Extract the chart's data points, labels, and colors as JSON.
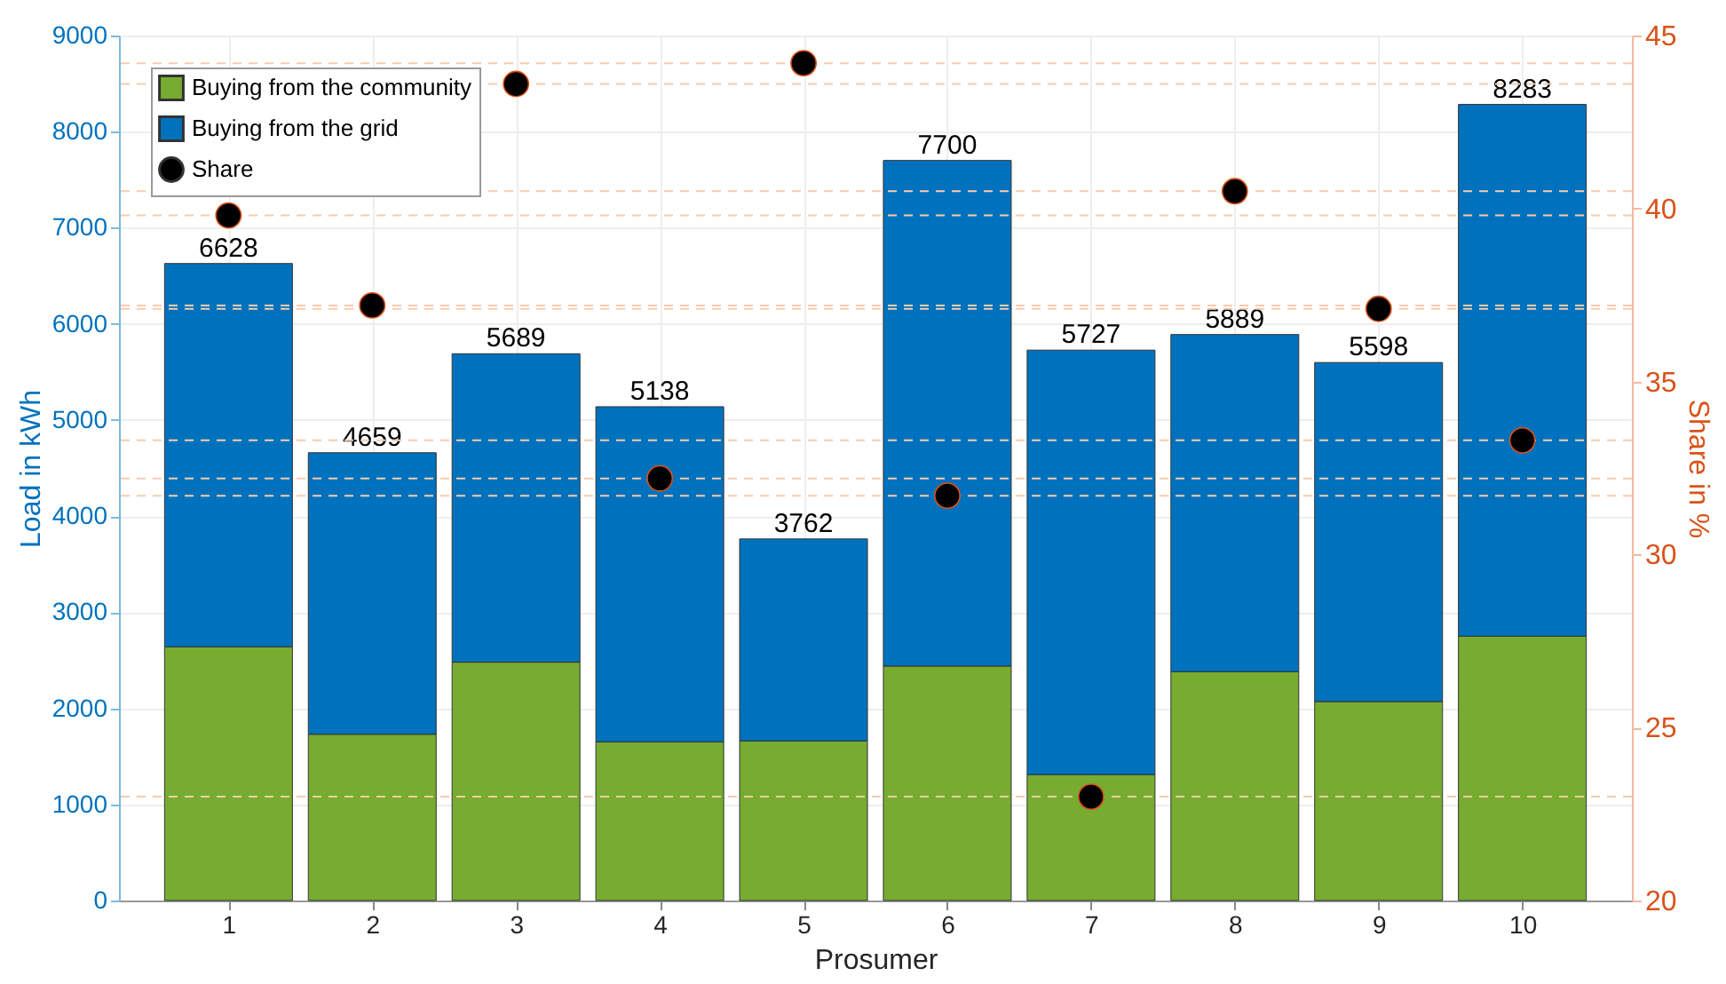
{
  "chart_data": {
    "type": "bar",
    "stacked": true,
    "xlabel": "Prosumer",
    "ylabel": "Load in kWh",
    "y2label": "Share in %",
    "categories": [
      "1",
      "2",
      "3",
      "4",
      "5",
      "6",
      "7",
      "8",
      "9",
      "10"
    ],
    "series": [
      {
        "name": "Buying from the community",
        "color": "#77ac30",
        "values": [
          2640,
          1730,
          2480,
          1650,
          1660,
          2440,
          1310,
          2380,
          2070,
          2750
        ]
      },
      {
        "name": "Buying from the grid",
        "color": "#0072bd",
        "values": [
          3988,
          2929,
          3209,
          3488,
          2102,
          5260,
          4417,
          3509,
          3528,
          5533
        ]
      },
      {
        "name": "Share",
        "type": "scatter",
        "axis": "y2",
        "color": "#000000",
        "marker": "circle",
        "values": [
          39.8,
          37.2,
          43.6,
          32.2,
          44.2,
          31.7,
          23.0,
          40.5,
          37.1,
          33.3
        ]
      }
    ],
    "totals": [
      "6628",
      "4659",
      "5689",
      "5138",
      "3762",
      "7700",
      "5727",
      "5889",
      "5598",
      "8283"
    ],
    "ylim": [
      0,
      9000
    ],
    "yticks": [
      0,
      1000,
      2000,
      3000,
      4000,
      5000,
      6000,
      7000,
      8000,
      9000
    ],
    "y2lim": [
      20,
      45
    ],
    "y2ticks": [
      20,
      25,
      30,
      35,
      40,
      45
    ],
    "ref_lines": [
      {
        "axis": "y2",
        "value": 39.8,
        "color": "#f8cbad",
        "line_style": "dashed"
      },
      {
        "axis": "y2",
        "value": 37.2,
        "color": "#f8cbad",
        "line_style": "dashed"
      },
      {
        "axis": "y2",
        "value": 43.6,
        "color": "#f8cbad",
        "line_style": "dashed"
      },
      {
        "axis": "y2",
        "value": 32.2,
        "color": "#f8cbad",
        "line_style": "dashed"
      },
      {
        "axis": "y2",
        "value": 44.2,
        "color": "#f8cbad",
        "line_style": "dashed"
      },
      {
        "axis": "y2",
        "value": 31.7,
        "color": "#f8cbad",
        "line_style": "dashed"
      },
      {
        "axis": "y2",
        "value": 23.0,
        "color": "#f8cbad",
        "line_style": "dashed"
      },
      {
        "axis": "y2",
        "value": 40.5,
        "color": "#f8cbad",
        "line_style": "dashed"
      },
      {
        "axis": "y2",
        "value": 37.1,
        "color": "#f8cbad",
        "line_style": "dashed"
      },
      {
        "axis": "y2",
        "value": 33.3,
        "color": "#f8cbad",
        "line_style": "dashed"
      }
    ],
    "grid": true,
    "legend": "top left"
  }
}
